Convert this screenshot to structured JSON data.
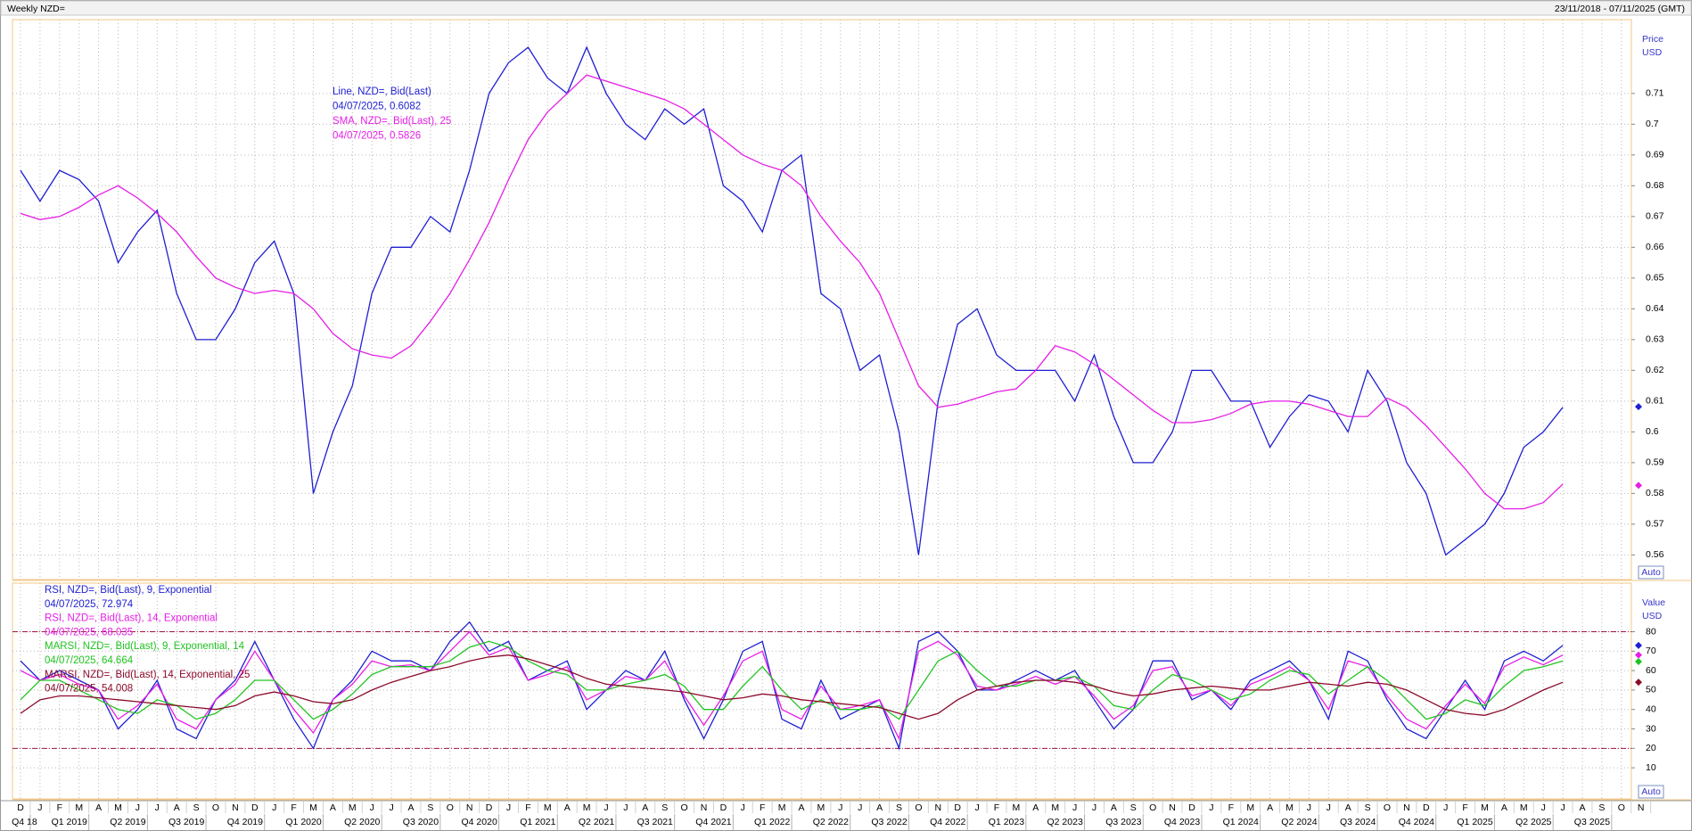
{
  "header": {
    "title": "Weekly NZD=",
    "range": "23/11/2018 - 07/11/2025 (GMT)"
  },
  "x_axis": {
    "months": [
      "D",
      "J",
      "F",
      "M",
      "A",
      "M",
      "J",
      "J",
      "A",
      "S",
      "O",
      "N",
      "D",
      "J",
      "F",
      "M",
      "A",
      "M",
      "J",
      "J",
      "A",
      "S",
      "O",
      "N",
      "D",
      "J",
      "F",
      "M",
      "A",
      "M",
      "J",
      "J",
      "A",
      "S",
      "O",
      "N",
      "D",
      "J",
      "F",
      "M",
      "A",
      "M",
      "J",
      "J",
      "A",
      "S",
      "O",
      "N",
      "D",
      "J",
      "F",
      "M",
      "A",
      "M",
      "J",
      "J",
      "A",
      "S",
      "O",
      "N",
      "D",
      "J",
      "F",
      "M",
      "A",
      "M",
      "J",
      "J",
      "A",
      "S",
      "O",
      "N",
      "D",
      "J",
      "F",
      "M",
      "A",
      "M",
      "J",
      "J",
      "A",
      "S",
      "O",
      "N"
    ],
    "quarters": [
      "Q4 18",
      "Q1 2019",
      "Q2 2019",
      "Q3 2019",
      "Q4 2019",
      "Q1 2020",
      "Q2 2020",
      "Q3 2020",
      "Q4 2020",
      "Q1 2021",
      "Q2 2021",
      "Q3 2021",
      "Q4 2021",
      "Q1 2022",
      "Q2 2022",
      "Q3 2022",
      "Q4 2022",
      "Q1 2023",
      "Q2 2023",
      "Q3 2023",
      "Q4 2023",
      "Q1 2024",
      "Q2 2024",
      "Q3 2024",
      "Q4 2024",
      "Q1 2025",
      "Q2 2025",
      "Q3 2025"
    ]
  },
  "chart_data": [
    {
      "type": "line",
      "axis_title": "Price",
      "axis_unit": "USD",
      "scale_button": "Auto",
      "x": [
        "2018-12",
        "2019-01",
        "2019-02",
        "2019-03",
        "2019-04",
        "2019-05",
        "2019-06",
        "2019-07",
        "2019-08",
        "2019-09",
        "2019-10",
        "2019-11",
        "2019-12",
        "2020-01",
        "2020-02",
        "2020-03",
        "2020-04",
        "2020-05",
        "2020-06",
        "2020-07",
        "2020-08",
        "2020-09",
        "2020-10",
        "2020-11",
        "2020-12",
        "2021-01",
        "2021-02",
        "2021-03",
        "2021-04",
        "2021-05",
        "2021-06",
        "2021-07",
        "2021-08",
        "2021-09",
        "2021-10",
        "2021-11",
        "2021-12",
        "2022-01",
        "2022-02",
        "2022-03",
        "2022-04",
        "2022-05",
        "2022-06",
        "2022-07",
        "2022-08",
        "2022-09",
        "2022-10",
        "2022-11",
        "2022-12",
        "2023-01",
        "2023-02",
        "2023-03",
        "2023-04",
        "2023-05",
        "2023-06",
        "2023-07",
        "2023-08",
        "2023-09",
        "2023-10",
        "2023-11",
        "2023-12",
        "2024-01",
        "2024-02",
        "2024-03",
        "2024-04",
        "2024-05",
        "2024-06",
        "2024-07",
        "2024-08",
        "2024-09",
        "2024-10",
        "2024-11",
        "2024-12",
        "2025-01",
        "2025-02",
        "2025-03",
        "2025-04",
        "2025-05",
        "2025-06",
        "2025-07"
      ],
      "series": [
        {
          "name": "Line, NZD=, Bid(Last)",
          "color": "#1f1fd2",
          "last_label": "04/07/2025, 0.6082",
          "last_value": 0.6082,
          "values": [
            0.685,
            0.675,
            0.685,
            0.682,
            0.675,
            0.655,
            0.665,
            0.672,
            0.645,
            0.63,
            0.63,
            0.64,
            0.655,
            0.662,
            0.645,
            0.58,
            0.6,
            0.615,
            0.645,
            0.66,
            0.66,
            0.67,
            0.665,
            0.685,
            0.71,
            0.72,
            0.725,
            0.715,
            0.71,
            0.725,
            0.71,
            0.7,
            0.695,
            0.705,
            0.7,
            0.705,
            0.68,
            0.675,
            0.665,
            0.685,
            0.69,
            0.645,
            0.64,
            0.62,
            0.625,
            0.6,
            0.56,
            0.61,
            0.635,
            0.64,
            0.625,
            0.62,
            0.62,
            0.62,
            0.61,
            0.625,
            0.605,
            0.59,
            0.59,
            0.6,
            0.62,
            0.62,
            0.61,
            0.61,
            0.595,
            0.605,
            0.612,
            0.61,
            0.6,
            0.62,
            0.61,
            0.59,
            0.58,
            0.56,
            0.565,
            0.57,
            0.58,
            0.595,
            0.6,
            0.608
          ]
        },
        {
          "name": "SMA, NZD=, Bid(Last),  25",
          "color": "#e61ee6",
          "last_label": "04/07/2025, 0.5826",
          "last_value": 0.5826,
          "values": [
            0.671,
            0.669,
            0.67,
            0.673,
            0.677,
            0.68,
            0.676,
            0.671,
            0.665,
            0.657,
            0.65,
            0.647,
            0.645,
            0.646,
            0.645,
            0.64,
            0.632,
            0.627,
            0.625,
            0.624,
            0.628,
            0.636,
            0.645,
            0.656,
            0.668,
            0.682,
            0.695,
            0.704,
            0.71,
            0.716,
            0.714,
            0.712,
            0.71,
            0.708,
            0.705,
            0.7,
            0.695,
            0.69,
            0.687,
            0.685,
            0.68,
            0.67,
            0.662,
            0.655,
            0.645,
            0.63,
            0.615,
            0.608,
            0.609,
            0.611,
            0.613,
            0.614,
            0.62,
            0.628,
            0.626,
            0.622,
            0.617,
            0.612,
            0.607,
            0.603,
            0.603,
            0.604,
            0.606,
            0.609,
            0.61,
            0.61,
            0.609,
            0.607,
            0.605,
            0.605,
            0.611,
            0.608,
            0.602,
            0.595,
            0.588,
            0.58,
            0.575,
            0.575,
            0.577,
            0.583
          ]
        }
      ],
      "ylim": [
        0.552,
        0.734
      ],
      "yticks": [
        0.56,
        0.57,
        0.58,
        0.59,
        0.6,
        0.61,
        0.62,
        0.63,
        0.64,
        0.65,
        0.66,
        0.67,
        0.68,
        0.69,
        0.7,
        0.71
      ],
      "grid": true
    },
    {
      "type": "line",
      "axis_title": "Value",
      "axis_unit": "USD",
      "scale_button": "Auto",
      "x": [
        "2018-12",
        "2019-01",
        "2019-02",
        "2019-03",
        "2019-04",
        "2019-05",
        "2019-06",
        "2019-07",
        "2019-08",
        "2019-09",
        "2019-10",
        "2019-11",
        "2019-12",
        "2020-01",
        "2020-02",
        "2020-03",
        "2020-04",
        "2020-05",
        "2020-06",
        "2020-07",
        "2020-08",
        "2020-09",
        "2020-10",
        "2020-11",
        "2020-12",
        "2021-01",
        "2021-02",
        "2021-03",
        "2021-04",
        "2021-05",
        "2021-06",
        "2021-07",
        "2021-08",
        "2021-09",
        "2021-10",
        "2021-11",
        "2021-12",
        "2022-01",
        "2022-02",
        "2022-03",
        "2022-04",
        "2022-05",
        "2022-06",
        "2022-07",
        "2022-08",
        "2022-09",
        "2022-10",
        "2022-11",
        "2022-12",
        "2023-01",
        "2023-02",
        "2023-03",
        "2023-04",
        "2023-05",
        "2023-06",
        "2023-07",
        "2023-08",
        "2023-09",
        "2023-10",
        "2023-11",
        "2023-12",
        "2024-01",
        "2024-02",
        "2024-03",
        "2024-04",
        "2024-05",
        "2024-06",
        "2024-07",
        "2024-08",
        "2024-09",
        "2024-10",
        "2024-11",
        "2024-12",
        "2025-01",
        "2025-02",
        "2025-03",
        "2025-04",
        "2025-05",
        "2025-06",
        "2025-07"
      ],
      "series": [
        {
          "name": "RSI, NZD=, Bid(Last),  9, Exponential",
          "color": "#1f1fd2",
          "last_label": "04/07/2025, 72.974",
          "last_value": 72.974,
          "values": [
            65,
            55,
            60,
            55,
            50,
            30,
            40,
            55,
            30,
            25,
            45,
            55,
            75,
            55,
            35,
            20,
            45,
            55,
            70,
            65,
            65,
            60,
            75,
            85,
            70,
            75,
            55,
            60,
            65,
            40,
            50,
            60,
            55,
            70,
            45,
            25,
            45,
            70,
            75,
            35,
            30,
            55,
            35,
            40,
            45,
            20,
            75,
            80,
            70,
            50,
            50,
            55,
            60,
            55,
            60,
            45,
            30,
            40,
            65,
            65,
            45,
            50,
            40,
            55,
            60,
            65,
            55,
            35,
            70,
            65,
            45,
            30,
            25,
            40,
            55,
            40,
            65,
            70,
            65,
            73
          ]
        },
        {
          "name": "RSI, NZD=, Bid(Last),  14, Exponential",
          "color": "#e61ee6",
          "last_label": "04/07/2025, 68.035",
          "last_value": 68.035,
          "values": [
            60,
            55,
            58,
            53,
            50,
            35,
            42,
            53,
            35,
            30,
            45,
            53,
            70,
            55,
            40,
            28,
            45,
            53,
            65,
            62,
            63,
            60,
            70,
            80,
            68,
            72,
            55,
            58,
            62,
            45,
            50,
            57,
            55,
            65,
            47,
            32,
            47,
            65,
            70,
            40,
            35,
            52,
            40,
            42,
            45,
            25,
            70,
            75,
            68,
            52,
            50,
            53,
            57,
            53,
            57,
            47,
            35,
            42,
            60,
            62,
            47,
            50,
            42,
            53,
            57,
            62,
            55,
            40,
            65,
            62,
            47,
            35,
            30,
            42,
            53,
            43,
            62,
            67,
            63,
            68
          ]
        },
        {
          "name": "MARSI, NZD=, Bid(Last),  9, Exponential, 14",
          "color": "#22c322",
          "last_label": "04/07/2025, 64.664",
          "last_value": 64.664,
          "values": [
            45,
            55,
            55,
            50,
            45,
            40,
            38,
            45,
            42,
            35,
            38,
            45,
            55,
            55,
            45,
            35,
            40,
            48,
            58,
            62,
            62,
            62,
            65,
            72,
            75,
            72,
            65,
            60,
            58,
            50,
            50,
            53,
            55,
            58,
            52,
            40,
            40,
            52,
            62,
            50,
            40,
            45,
            40,
            40,
            42,
            35,
            50,
            65,
            70,
            60,
            52,
            52,
            55,
            55,
            57,
            52,
            42,
            40,
            50,
            58,
            55,
            50,
            45,
            48,
            55,
            60,
            58,
            48,
            55,
            62,
            55,
            45,
            35,
            38,
            45,
            42,
            52,
            60,
            62,
            65
          ]
        },
        {
          "name": "MARSI, NZD=, Bid(Last),  14, Exponential, 25",
          "color": "#8b0a2a",
          "last_label": "04/07/2025, 54.008",
          "last_value": 54.008,
          "values": [
            38,
            45,
            47,
            47,
            46,
            45,
            44,
            43,
            42,
            41,
            40,
            42,
            47,
            49,
            47,
            44,
            43,
            45,
            50,
            54,
            57,
            60,
            62,
            65,
            67,
            68,
            66,
            63,
            60,
            56,
            53,
            52,
            51,
            50,
            49,
            47,
            45,
            46,
            48,
            47,
            45,
            44,
            43,
            42,
            41,
            38,
            35,
            38,
            45,
            50,
            52,
            54,
            55,
            55,
            54,
            52,
            49,
            47,
            48,
            50,
            51,
            52,
            51,
            50,
            50,
            52,
            54,
            53,
            52,
            54,
            53,
            50,
            45,
            40,
            38,
            37,
            40,
            45,
            50,
            54
          ]
        }
      ],
      "levels": [
        80,
        20
      ],
      "level_color": "#a0143c",
      "ylim": [
        -6,
        105
      ],
      "yticks": [
        10,
        20,
        30,
        40,
        50,
        60,
        70,
        80
      ],
      "grid": true
    }
  ]
}
